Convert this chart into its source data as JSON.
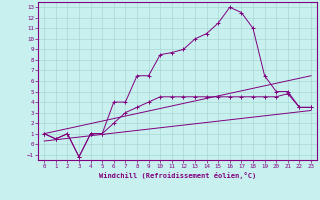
{
  "xlabel": "Windchill (Refroidissement éolien,°C)",
  "bg_color": "#c8f0ee",
  "line_color": "#800080",
  "grid_color": "#a8d8d0",
  "xlim": [
    -0.5,
    23.5
  ],
  "ylim": [
    -1.5,
    13.5
  ],
  "xticks": [
    0,
    1,
    2,
    3,
    4,
    5,
    6,
    7,
    8,
    9,
    10,
    11,
    12,
    13,
    14,
    15,
    16,
    17,
    18,
    19,
    20,
    21,
    22,
    23
  ],
  "yticks": [
    -1,
    0,
    1,
    2,
    3,
    4,
    5,
    6,
    7,
    8,
    9,
    10,
    11,
    12,
    13
  ],
  "line1_x": [
    0,
    1,
    2,
    3,
    4,
    5,
    6,
    7,
    8,
    9,
    10,
    11,
    12,
    13,
    14,
    15,
    16,
    17,
    18,
    19,
    20,
    21,
    22,
    23
  ],
  "line1_y": [
    1.0,
    0.5,
    1.0,
    -1.2,
    1.0,
    1.0,
    4.0,
    4.0,
    6.5,
    6.5,
    8.5,
    8.7,
    9.0,
    10.0,
    10.5,
    11.5,
    13.0,
    12.5,
    11.0,
    6.5,
    5.0,
    5.0,
    3.5,
    3.5
  ],
  "line2_x": [
    0,
    1,
    2,
    3,
    4,
    5,
    6,
    7,
    8,
    9,
    10,
    11,
    12,
    13,
    14,
    15,
    16,
    17,
    18,
    19,
    20,
    21,
    22,
    23
  ],
  "line2_y": [
    1.0,
    0.5,
    1.0,
    -1.2,
    1.0,
    1.0,
    2.0,
    3.0,
    3.5,
    4.0,
    4.5,
    4.5,
    4.5,
    4.5,
    4.5,
    4.5,
    4.5,
    4.5,
    4.5,
    4.5,
    4.5,
    4.8,
    3.5,
    3.5
  ],
  "line3_x": [
    0,
    23
  ],
  "line3_y": [
    1.0,
    6.5
  ],
  "line4_x": [
    0,
    23
  ],
  "line4_y": [
    0.3,
    3.2
  ]
}
